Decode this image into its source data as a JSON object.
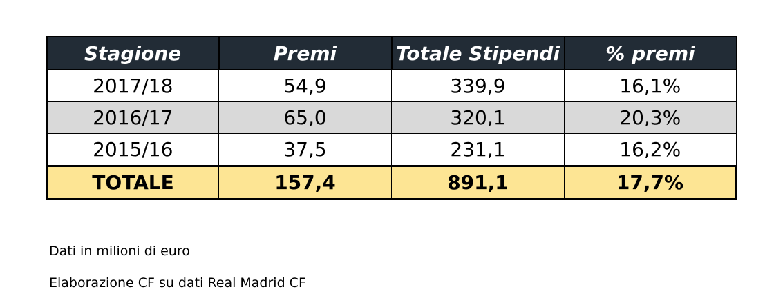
{
  "table": {
    "headers": [
      "Stagione",
      "Premi",
      "Totale Stipendi",
      "% premi"
    ],
    "rows": [
      [
        "2017/18",
        "54,9",
        "339,9",
        "16,1%"
      ],
      [
        "2016/17",
        "65,0",
        "320,1",
        "20,3%"
      ],
      [
        "2015/16",
        "37,5",
        "231,1",
        "16,2%"
      ]
    ],
    "total": [
      "TOTALE",
      "157,4",
      "891,1",
      "17,7%"
    ]
  },
  "notes": {
    "unit": "Dati in milioni di euro",
    "source": "Elaborazione CF su dati Real Madrid CF"
  },
  "colors": {
    "header_bg": "#222c36",
    "header_text": "#ffffff",
    "row_alt_bg": "#d9d9d9",
    "total_bg": "#fde594"
  }
}
